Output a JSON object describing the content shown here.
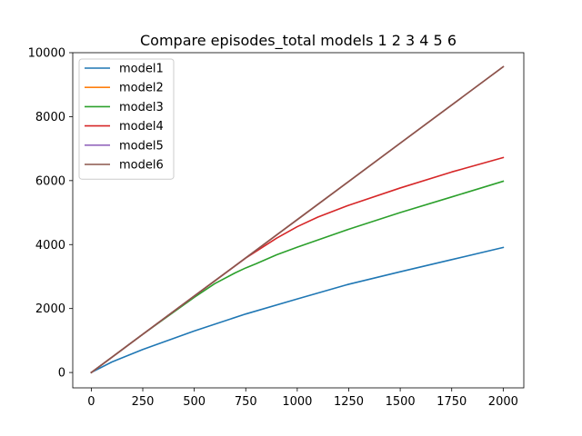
{
  "chart_data": {
    "type": "line",
    "title": "Compare episodes_total models 1 2 3 4 5 6",
    "xlabel": "",
    "ylabel": "",
    "xlim": [
      -90,
      2100
    ],
    "ylim": [
      -480,
      10000
    ],
    "xticks": [
      0,
      250,
      500,
      750,
      1000,
      1250,
      1500,
      1750,
      2000
    ],
    "yticks": [
      0,
      2000,
      4000,
      6000,
      8000,
      10000
    ],
    "xtick_labels": [
      "0",
      "250",
      "500",
      "750",
      "1000",
      "1250",
      "1500",
      "1750",
      "2000"
    ],
    "ytick_labels": [
      "0",
      "2000",
      "4000",
      "6000",
      "8000",
      "10000"
    ],
    "legend_position": "top-left",
    "grid": false,
    "series": [
      {
        "name": "model1",
        "color": "#1f77b4",
        "x": [
          0,
          100,
          250,
          500,
          750,
          1000,
          1250,
          1500,
          1750,
          2000
        ],
        "y": [
          0,
          330,
          720,
          1300,
          1830,
          2300,
          2760,
          3150,
          3530,
          3910
        ]
      },
      {
        "name": "model2",
        "color": "#ff7f0e",
        "x": [
          0,
          500,
          1000,
          1500,
          2000
        ],
        "y": [
          0,
          2390,
          4780,
          7170,
          9560
        ]
      },
      {
        "name": "model3",
        "color": "#2ca02c",
        "x": [
          0,
          250,
          500,
          600,
          700,
          750,
          800,
          900,
          1000,
          1250,
          1500,
          1750,
          2000
        ],
        "y": [
          0,
          1195,
          2350,
          2780,
          3120,
          3270,
          3400,
          3680,
          3920,
          4480,
          5000,
          5490,
          5980
        ]
      },
      {
        "name": "model4",
        "color": "#d62728",
        "x": [
          0,
          250,
          500,
          750,
          900,
          1000,
          1100,
          1250,
          1500,
          1750,
          2000
        ],
        "y": [
          0,
          1195,
          2390,
          3580,
          4200,
          4560,
          4860,
          5230,
          5770,
          6270,
          6720
        ]
      },
      {
        "name": "model5",
        "color": "#9467bd",
        "x": [
          0,
          500,
          1000,
          1500,
          2000
        ],
        "y": [
          0,
          2390,
          4780,
          7170,
          9560
        ]
      },
      {
        "name": "model6",
        "color": "#8c564b",
        "x": [
          0,
          500,
          1000,
          1500,
          2000
        ],
        "y": [
          0,
          2390,
          4780,
          7170,
          9560
        ]
      }
    ]
  }
}
